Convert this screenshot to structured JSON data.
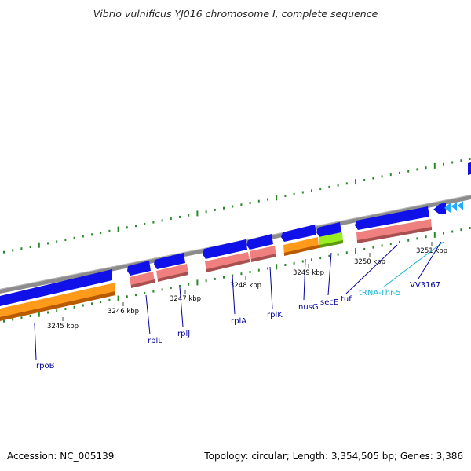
{
  "title": "Vibrio vulnificus YJ016 chromosome I, complete sequence",
  "footer": {
    "accession": "Accession: NC_005139",
    "topology": "Topology: circular; Length: 3,354,505 bp; Genes: 3,386"
  },
  "colors": {
    "backbone": "#8c8c8c",
    "gene": "#1010e8",
    "cds": "#f08080",
    "rna_cds": "#ff9a1a",
    "green_cds": "#99ee22",
    "trna": "#22aaff",
    "label": "#000099",
    "trna_label": "#19b4d4",
    "tick": "#2a8a2a"
  },
  "ruler": [
    {
      "text": "3245 kbp"
    },
    {
      "text": "3246 kbp"
    },
    {
      "text": "3247 kbp"
    },
    {
      "text": "3248 kbp"
    },
    {
      "text": "3249 kbp"
    },
    {
      "text": "3250 kbp"
    },
    {
      "text": "3251 kbp"
    }
  ],
  "genes": [
    {
      "label": "rpoB"
    },
    {
      "label": "rplL"
    },
    {
      "label": "rplJ"
    },
    {
      "label": "rplA"
    },
    {
      "label": "rplK"
    },
    {
      "label": "nusG"
    },
    {
      "label": "secE"
    },
    {
      "label": "tuf"
    },
    {
      "label": "tRNA-Thr-5"
    },
    {
      "label": "VV3167"
    }
  ]
}
